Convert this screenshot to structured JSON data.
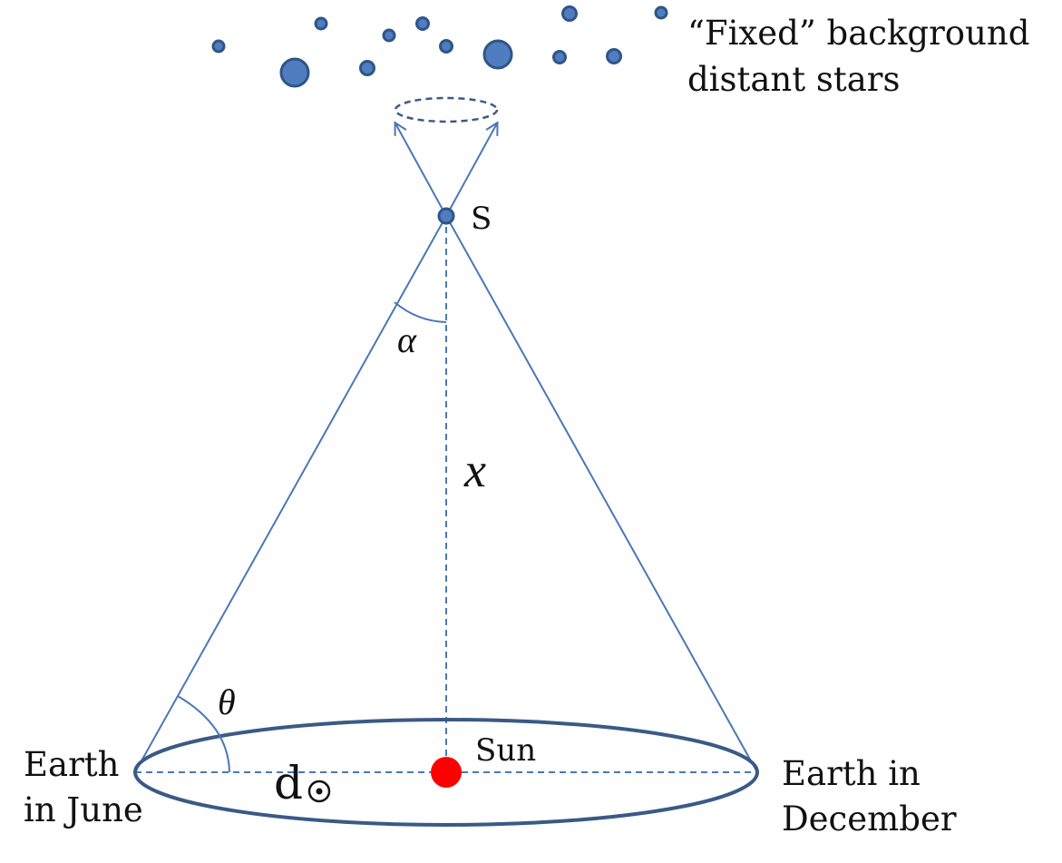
{
  "labels": {
    "fixed_stars_line1": "“Fixed” background",
    "fixed_stars_line2": "distant stars",
    "star": "S",
    "alpha": "α",
    "x": "x",
    "theta": "θ",
    "sun": "Sun",
    "d_sun": "d",
    "earth_june_line1": "Earth",
    "earth_june_line2": "in June",
    "earth_dec_line1": "Earth in",
    "earth_dec_line2": "December"
  },
  "colors": {
    "star_fill": "#4f7dbf",
    "star_stroke": "#2f5588",
    "line": "#4a78b5",
    "orbit": "#3a5a86",
    "sun": "#ff0000",
    "text": "#111111"
  }
}
